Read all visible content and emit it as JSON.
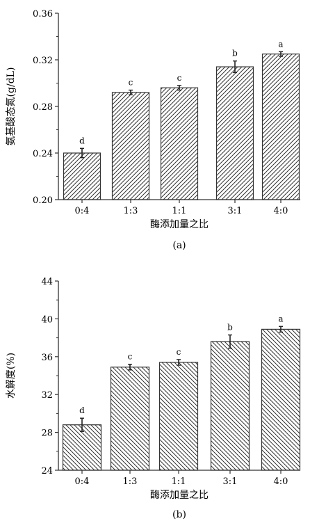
{
  "chart_data": [
    {
      "type": "bar",
      "caption": "(a)",
      "categories": [
        "0:4",
        "1:3",
        "1:1",
        "3:1",
        "4:0"
      ],
      "values": [
        0.24,
        0.292,
        0.296,
        0.314,
        0.325
      ],
      "errors": [
        0.004,
        0.002,
        0.002,
        0.005,
        0.002
      ],
      "significance": [
        "d",
        "c",
        "c",
        "b",
        "a"
      ],
      "xlabel": "酶添加量之比",
      "ylabel": "氨基酸态氮(g/dL)",
      "ylim": [
        0.2,
        0.36
      ],
      "yticks": [
        "0.20",
        "0.24",
        "0.28",
        "0.32",
        "0.36"
      ],
      "hatch": "forward-diagonal"
    },
    {
      "type": "bar",
      "caption": "(b)",
      "categories": [
        "0:4",
        "1:3",
        "1:1",
        "3:1",
        "4:0"
      ],
      "values": [
        28.8,
        34.9,
        35.4,
        37.6,
        38.9
      ],
      "errors": [
        0.7,
        0.3,
        0.3,
        0.7,
        0.3
      ],
      "significance": [
        "d",
        "c",
        "c",
        "b",
        "a"
      ],
      "xlabel": "酶添加量之比",
      "ylabel": "水解度(%)",
      "ylim": [
        24,
        44
      ],
      "yticks": [
        "24",
        "28",
        "32",
        "36",
        "40",
        "44"
      ],
      "hatch": "back-diagonal"
    }
  ]
}
